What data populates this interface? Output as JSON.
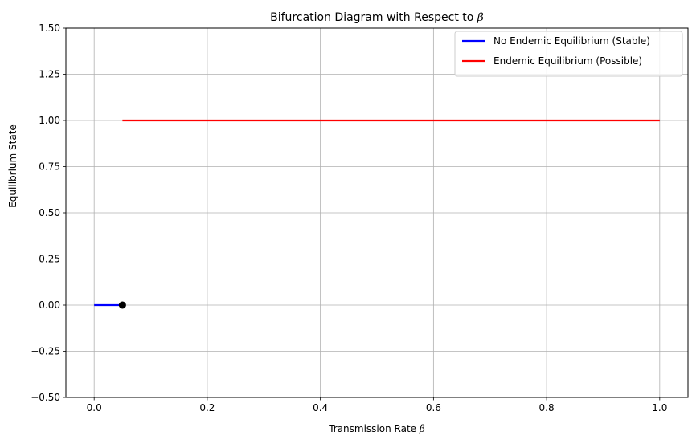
{
  "chart_data": {
    "type": "line",
    "title": "Bifurcation Diagram with Respect to",
    "title_symbol": "β",
    "xlabel": "Transmission Rate",
    "xlabel_symbol": "β",
    "ylabel": "Equilibrium State",
    "xlim": [
      -0.05,
      1.05
    ],
    "ylim": [
      -0.5,
      1.5
    ],
    "x_ticks": [
      0.0,
      0.2,
      0.4,
      0.6,
      0.8,
      1.0
    ],
    "x_tick_labels": [
      "0.0",
      "0.2",
      "0.4",
      "0.6",
      "0.8",
      "1.0"
    ],
    "y_ticks": [
      -0.5,
      -0.25,
      0.0,
      0.25,
      0.5,
      0.75,
      1.0,
      1.25,
      1.5
    ],
    "y_tick_labels": [
      "−0.50",
      "−0.25",
      "0.00",
      "0.25",
      "0.50",
      "0.75",
      "1.00",
      "1.25",
      "1.50"
    ],
    "grid": true,
    "legend_position": "top-right",
    "series": [
      {
        "name": "No Endemic Equilibrium (Stable)",
        "color": "#0000ff",
        "x": [
          0.0,
          0.05
        ],
        "y": [
          0.0,
          0.0
        ]
      },
      {
        "name": "Endemic Equilibrium (Possible)",
        "color": "#ff0000",
        "x": [
          0.05,
          1.0
        ],
        "y": [
          1.0,
          1.0
        ]
      }
    ],
    "markers": [
      {
        "x": 0.05,
        "y": 0.0,
        "color": "#000000"
      }
    ]
  }
}
